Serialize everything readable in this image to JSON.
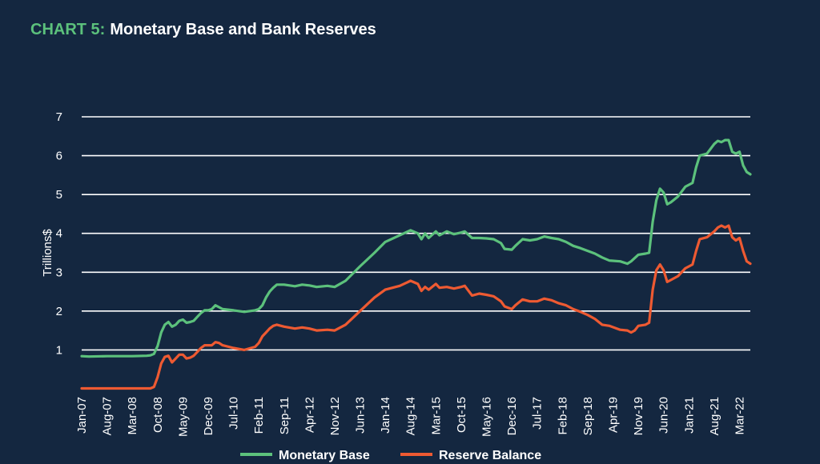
{
  "title": {
    "prefix": "CHART 5:",
    "main": "Monetary Base and Bank Reserves"
  },
  "colors": {
    "background": "#142740",
    "title_prefix": "#5cc17c",
    "monetary_base": "#5cc17c",
    "reserve_balance": "#ee5a32",
    "grid": "#ffffff",
    "text": "#ffffff"
  },
  "chart_data": {
    "type": "line",
    "title": "Monetary Base and Bank Reserves",
    "xlabel": "",
    "ylabel": "Trillions$",
    "ylim": [
      0,
      7
    ],
    "yticks": [
      1,
      2,
      3,
      4,
      5,
      6,
      7
    ],
    "y_tick_labels": [
      "1",
      "2",
      "3",
      "4",
      "5",
      "6",
      "7"
    ],
    "x_tick_labels": [
      "Jan-07",
      "Aug-07",
      "Mar-08",
      "Oct-08",
      "May-09",
      "Dec-09",
      "Jul-10",
      "Feb-11",
      "Sep-11",
      "Apr-12",
      "Nov-12",
      "Jun-13",
      "Jan-14",
      "Aug-14",
      "Mar-15",
      "Oct-15",
      "May-16",
      "Dec-16",
      "Jul-17",
      "Feb-18",
      "Sep-18",
      "Apr-19",
      "Nov-19",
      "Jun-20",
      "Jan-21",
      "Aug-21",
      "Mar-22"
    ],
    "xlim": [
      "Jan-07",
      "Jun-22"
    ],
    "grid": true,
    "legend": "bottom",
    "series": [
      {
        "name": "Monetary Base",
        "color": "#5cc17c",
        "points": [
          [
            "Jan-07",
            0.84
          ],
          [
            "Mar-07",
            0.83
          ],
          [
            "Aug-07",
            0.84
          ],
          [
            "Mar-08",
            0.84
          ],
          [
            "Jul-08",
            0.85
          ],
          [
            "Aug-08",
            0.86
          ],
          [
            "Sep-08",
            0.9
          ],
          [
            "Oct-08",
            1.1
          ],
          [
            "Nov-08",
            1.45
          ],
          [
            "Dec-08",
            1.65
          ],
          [
            "Jan-09",
            1.72
          ],
          [
            "Feb-09",
            1.6
          ],
          [
            "Mar-09",
            1.65
          ],
          [
            "Apr-09",
            1.75
          ],
          [
            "May-09",
            1.78
          ],
          [
            "Jun-09",
            1.7
          ],
          [
            "Jul-09",
            1.72
          ],
          [
            "Aug-09",
            1.75
          ],
          [
            "Sep-09",
            1.85
          ],
          [
            "Oct-09",
            1.95
          ],
          [
            "Nov-09",
            2.02
          ],
          [
            "Dec-09",
            2.02
          ],
          [
            "Jan-10",
            2.05
          ],
          [
            "Feb-10",
            2.15
          ],
          [
            "Mar-10",
            2.1
          ],
          [
            "Apr-10",
            2.05
          ],
          [
            "Jul-10",
            2.02
          ],
          [
            "Oct-10",
            1.98
          ],
          [
            "Jan-11",
            2.02
          ],
          [
            "Feb-11",
            2.05
          ],
          [
            "Mar-11",
            2.15
          ],
          [
            "Apr-11",
            2.35
          ],
          [
            "May-11",
            2.5
          ],
          [
            "Jun-11",
            2.6
          ],
          [
            "Jul-11",
            2.68
          ],
          [
            "Sep-11",
            2.68
          ],
          [
            "Dec-11",
            2.64
          ],
          [
            "Feb-12",
            2.68
          ],
          [
            "Apr-12",
            2.66
          ],
          [
            "Jun-12",
            2.62
          ],
          [
            "Sep-12",
            2.65
          ],
          [
            "Nov-12",
            2.62
          ],
          [
            "Feb-13",
            2.78
          ],
          [
            "Jun-13",
            3.15
          ],
          [
            "Oct-13",
            3.5
          ],
          [
            "Jan-14",
            3.78
          ],
          [
            "May-14",
            3.95
          ],
          [
            "Aug-14",
            4.08
          ],
          [
            "Oct-14",
            4.0
          ],
          [
            "Nov-14",
            3.85
          ],
          [
            "Dec-14",
            4.0
          ],
          [
            "Jan-15",
            3.88
          ],
          [
            "Mar-15",
            4.05
          ],
          [
            "Apr-15",
            3.95
          ],
          [
            "Jun-15",
            4.05
          ],
          [
            "Aug-15",
            3.98
          ],
          [
            "Oct-15",
            4.02
          ],
          [
            "Nov-15",
            4.05
          ],
          [
            "Jan-16",
            3.88
          ],
          [
            "Mar-16",
            3.88
          ],
          [
            "May-16",
            3.87
          ],
          [
            "Jul-16",
            3.85
          ],
          [
            "Sep-16",
            3.75
          ],
          [
            "Oct-16",
            3.6
          ],
          [
            "Dec-16",
            3.58
          ],
          [
            "Jan-17",
            3.68
          ],
          [
            "Mar-17",
            3.85
          ],
          [
            "May-17",
            3.82
          ],
          [
            "Jul-17",
            3.85
          ],
          [
            "Sep-17",
            3.92
          ],
          [
            "Nov-17",
            3.88
          ],
          [
            "Jan-18",
            3.85
          ],
          [
            "Mar-18",
            3.78
          ],
          [
            "May-18",
            3.68
          ],
          [
            "Jul-18",
            3.62
          ],
          [
            "Sep-18",
            3.55
          ],
          [
            "Nov-18",
            3.48
          ],
          [
            "Jan-19",
            3.38
          ],
          [
            "Mar-19",
            3.3
          ],
          [
            "Jun-19",
            3.28
          ],
          [
            "Aug-19",
            3.22
          ],
          [
            "Sep-19",
            3.28
          ],
          [
            "Nov-19",
            3.45
          ],
          [
            "Jan-20",
            3.48
          ],
          [
            "Feb-20",
            3.5
          ],
          [
            "Mar-20",
            4.3
          ],
          [
            "Apr-20",
            4.85
          ],
          [
            "May-20",
            5.15
          ],
          [
            "Jun-20",
            5.05
          ],
          [
            "Jul-20",
            4.75
          ],
          [
            "Aug-20",
            4.8
          ],
          [
            "Oct-20",
            4.95
          ],
          [
            "Dec-20",
            5.2
          ],
          [
            "Feb-21",
            5.3
          ],
          [
            "Mar-21",
            5.7
          ],
          [
            "Apr-21",
            6.0
          ],
          [
            "Jun-21",
            6.05
          ],
          [
            "Aug-21",
            6.3
          ],
          [
            "Sep-21",
            6.38
          ],
          [
            "Oct-21",
            6.35
          ],
          [
            "Nov-21",
            6.4
          ],
          [
            "Dec-21",
            6.4
          ],
          [
            "Jan-22",
            6.1
          ],
          [
            "Feb-22",
            6.05
          ],
          [
            "Mar-22",
            6.1
          ],
          [
            "Apr-22",
            5.75
          ],
          [
            "May-22",
            5.58
          ],
          [
            "Jun-22",
            5.52
          ]
        ]
      },
      {
        "name": "Reserve Balance",
        "color": "#ee5a32",
        "points": [
          [
            "Jan-07",
            0.01
          ],
          [
            "Mar-08",
            0.01
          ],
          [
            "Aug-08",
            0.01
          ],
          [
            "Sep-08",
            0.05
          ],
          [
            "Oct-08",
            0.3
          ],
          [
            "Nov-08",
            0.65
          ],
          [
            "Dec-08",
            0.82
          ],
          [
            "Jan-09",
            0.85
          ],
          [
            "Feb-09",
            0.68
          ],
          [
            "Mar-09",
            0.78
          ],
          [
            "Apr-09",
            0.88
          ],
          [
            "May-09",
            0.88
          ],
          [
            "Jun-09",
            0.78
          ],
          [
            "Jul-09",
            0.8
          ],
          [
            "Aug-09",
            0.85
          ],
          [
            "Sep-09",
            0.95
          ],
          [
            "Oct-09",
            1.05
          ],
          [
            "Nov-09",
            1.12
          ],
          [
            "Dec-09",
            1.12
          ],
          [
            "Jan-10",
            1.12
          ],
          [
            "Feb-10",
            1.2
          ],
          [
            "Mar-10",
            1.18
          ],
          [
            "Apr-10",
            1.12
          ],
          [
            "Jul-10",
            1.05
          ],
          [
            "Oct-10",
            1.0
          ],
          [
            "Jan-11",
            1.08
          ],
          [
            "Feb-11",
            1.18
          ],
          [
            "Mar-11",
            1.35
          ],
          [
            "Apr-11",
            1.45
          ],
          [
            "May-11",
            1.55
          ],
          [
            "Jun-11",
            1.62
          ],
          [
            "Jul-11",
            1.65
          ],
          [
            "Sep-11",
            1.6
          ],
          [
            "Dec-11",
            1.55
          ],
          [
            "Feb-12",
            1.58
          ],
          [
            "Apr-12",
            1.55
          ],
          [
            "Jun-12",
            1.5
          ],
          [
            "Sep-12",
            1.52
          ],
          [
            "Nov-12",
            1.5
          ],
          [
            "Feb-13",
            1.65
          ],
          [
            "Jun-13",
            2.0
          ],
          [
            "Oct-13",
            2.35
          ],
          [
            "Jan-14",
            2.55
          ],
          [
            "May-14",
            2.65
          ],
          [
            "Aug-14",
            2.78
          ],
          [
            "Oct-14",
            2.7
          ],
          [
            "Nov-14",
            2.52
          ],
          [
            "Dec-14",
            2.62
          ],
          [
            "Jan-15",
            2.55
          ],
          [
            "Mar-15",
            2.7
          ],
          [
            "Apr-15",
            2.6
          ],
          [
            "Jun-15",
            2.62
          ],
          [
            "Aug-15",
            2.58
          ],
          [
            "Oct-15",
            2.62
          ],
          [
            "Nov-15",
            2.65
          ],
          [
            "Jan-16",
            2.4
          ],
          [
            "Mar-16",
            2.45
          ],
          [
            "May-16",
            2.42
          ],
          [
            "Jul-16",
            2.38
          ],
          [
            "Sep-16",
            2.25
          ],
          [
            "Oct-16",
            2.12
          ],
          [
            "Dec-16",
            2.05
          ],
          [
            "Jan-17",
            2.15
          ],
          [
            "Mar-17",
            2.3
          ],
          [
            "May-17",
            2.25
          ],
          [
            "Jul-17",
            2.25
          ],
          [
            "Sep-17",
            2.32
          ],
          [
            "Nov-17",
            2.28
          ],
          [
            "Jan-18",
            2.2
          ],
          [
            "Mar-18",
            2.15
          ],
          [
            "May-18",
            2.05
          ],
          [
            "Jul-18",
            1.98
          ],
          [
            "Sep-18",
            1.9
          ],
          [
            "Nov-18",
            1.8
          ],
          [
            "Jan-19",
            1.65
          ],
          [
            "Mar-19",
            1.62
          ],
          [
            "Jun-19",
            1.52
          ],
          [
            "Aug-19",
            1.5
          ],
          [
            "Sep-19",
            1.45
          ],
          [
            "Oct-19",
            1.5
          ],
          [
            "Nov-19",
            1.62
          ],
          [
            "Jan-20",
            1.65
          ],
          [
            "Feb-20",
            1.7
          ],
          [
            "Mar-20",
            2.55
          ],
          [
            "Apr-20",
            3.05
          ],
          [
            "May-20",
            3.2
          ],
          [
            "Jun-20",
            3.05
          ],
          [
            "Jul-20",
            2.75
          ],
          [
            "Aug-20",
            2.8
          ],
          [
            "Oct-20",
            2.9
          ],
          [
            "Dec-20",
            3.1
          ],
          [
            "Feb-21",
            3.2
          ],
          [
            "Mar-21",
            3.55
          ],
          [
            "Apr-21",
            3.85
          ],
          [
            "Jun-21",
            3.9
          ],
          [
            "Aug-21",
            4.05
          ],
          [
            "Sep-21",
            4.15
          ],
          [
            "Oct-21",
            4.2
          ],
          [
            "Nov-21",
            4.15
          ],
          [
            "Dec-21",
            4.2
          ],
          [
            "Jan-22",
            3.9
          ],
          [
            "Feb-22",
            3.82
          ],
          [
            "Mar-22",
            3.88
          ],
          [
            "Apr-22",
            3.55
          ],
          [
            "May-22",
            3.28
          ],
          [
            "Jun-22",
            3.22
          ]
        ]
      }
    ]
  }
}
